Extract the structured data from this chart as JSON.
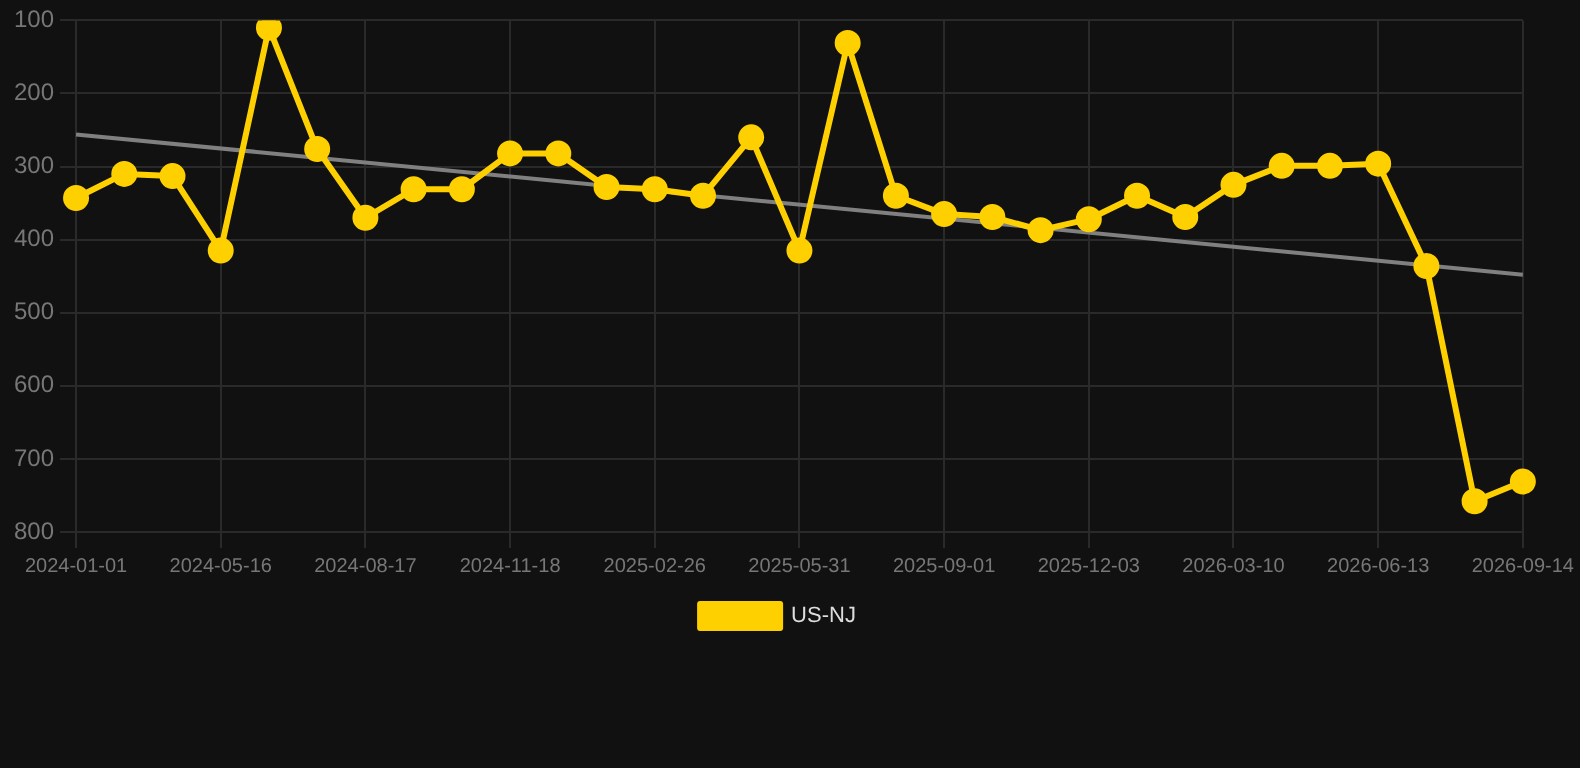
{
  "chart_data": {
    "type": "line",
    "categories": [
      "2024-01-01",
      null,
      null,
      "2024-05-16",
      null,
      null,
      "2024-08-17",
      null,
      null,
      "2024-11-18",
      null,
      null,
      "2025-02-26",
      null,
      null,
      "2025-05-31",
      null,
      null,
      "2025-09-01",
      null,
      null,
      "2025-12-03",
      null,
      null,
      "2026-03-10",
      null,
      null,
      "2026-06-13",
      null,
      null,
      "2026-09-14"
    ],
    "series": [
      {
        "name": "US-NJ",
        "color": "#ffd000",
        "marker": "circle",
        "values": [
          343,
          310,
          313,
          415,
          110,
          276,
          370,
          331,
          331,
          282,
          282,
          328,
          331,
          340,
          260,
          415,
          131,
          340,
          365,
          369,
          387,
          372,
          340,
          369,
          325,
          299,
          299,
          296,
          436,
          758,
          731
        ]
      },
      {
        "color": "#808080",
        "marker": "none",
        "values": [
          256,
          null,
          null,
          null,
          null,
          null,
          null,
          null,
          null,
          null,
          null,
          null,
          null,
          null,
          null,
          null,
          null,
          null,
          null,
          null,
          null,
          null,
          null,
          null,
          null,
          null,
          null,
          null,
          null,
          null,
          448
        ]
      }
    ],
    "ylim": [
      800,
      100
    ],
    "yticks": [
      100,
      200,
      300,
      400,
      500,
      600,
      700,
      800
    ],
    "grid": true,
    "legend": "bottom"
  }
}
